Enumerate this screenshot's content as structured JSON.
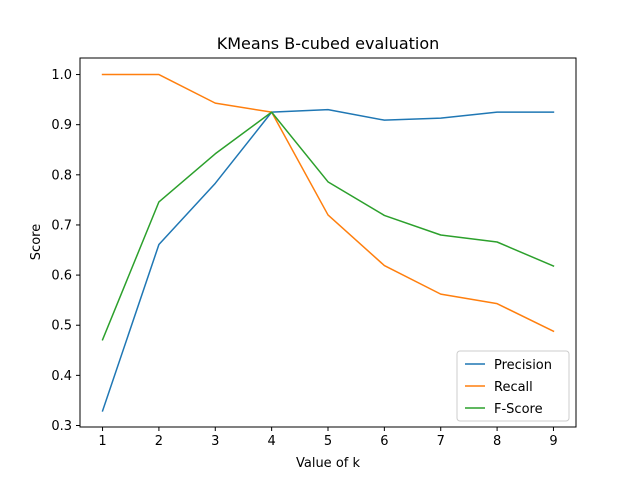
{
  "chart_data": {
    "type": "line",
    "title": "KMeans B-cubed evaluation",
    "xlabel": "Value of k",
    "ylabel": "Score",
    "x": [
      1,
      2,
      3,
      4,
      5,
      6,
      7,
      8,
      9
    ],
    "xlim": [
      0.6,
      9.4
    ],
    "ylim": [
      0.297,
      1.033
    ],
    "xticks": [
      "1",
      "2",
      "3",
      "4",
      "5",
      "6",
      "7",
      "8",
      "9"
    ],
    "yticks": [
      "0.3",
      "0.4",
      "0.5",
      "0.6",
      "0.7",
      "0.8",
      "0.9",
      "1.0"
    ],
    "grid": false,
    "legend_position": "lower-right",
    "series": [
      {
        "name": "Precision",
        "color": "#1f77b4",
        "values": [
          0.329,
          0.661,
          0.783,
          0.925,
          0.93,
          0.909,
          0.913,
          0.925,
          0.925
        ]
      },
      {
        "name": "Recall",
        "color": "#ff7f0e",
        "values": [
          1.0,
          1.0,
          0.943,
          0.925,
          0.72,
          0.619,
          0.562,
          0.543,
          0.488
        ]
      },
      {
        "name": "F-Score",
        "color": "#2ca02c",
        "values": [
          0.471,
          0.746,
          0.842,
          0.925,
          0.786,
          0.719,
          0.68,
          0.666,
          0.618
        ]
      }
    ]
  }
}
